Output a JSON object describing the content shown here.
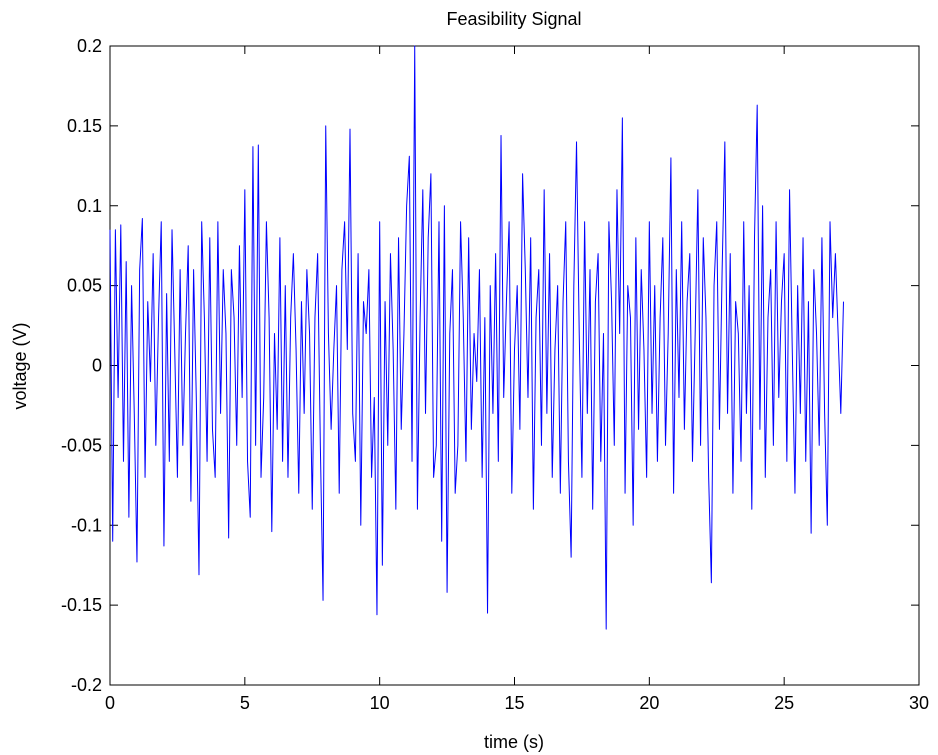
{
  "chart_data": {
    "type": "line",
    "title": "Feasibility Signal",
    "xlabel": "time (s)",
    "ylabel": "voltage (V)",
    "xlim": [
      0,
      30
    ],
    "ylim": [
      -0.2,
      0.2
    ],
    "xticks": [
      0,
      5,
      10,
      15,
      20,
      25,
      30
    ],
    "xtick_labels": [
      "0",
      "5",
      "10",
      "15",
      "20",
      "25",
      "30"
    ],
    "yticks": [
      -0.2,
      -0.15,
      -0.1,
      -0.05,
      0,
      0.05,
      0.1,
      0.15,
      0.2
    ],
    "ytick_labels": [
      "-0.2",
      "-0.15",
      "-0.1",
      "-0.05",
      "0",
      "0.05",
      "0.1",
      "0.15",
      "0.2"
    ],
    "grid": false,
    "series_color": "#0000ff",
    "series": [
      {
        "x_start": 0,
        "x_step": 0.1,
        "values": [
          0.085,
          -0.11,
          0.085,
          -0.02,
          0.088,
          -0.06,
          0.065,
          -0.095,
          0.05,
          -0.03,
          -0.123,
          0.06,
          0.092,
          -0.07,
          0.04,
          -0.01,
          0.07,
          -0.05,
          0.03,
          0.09,
          -0.113,
          0.045,
          -0.06,
          0.085,
          0.01,
          -0.07,
          0.06,
          -0.05,
          0.02,
          0.075,
          -0.085,
          0.06,
          -0.02,
          -0.131,
          0.09,
          0.03,
          -0.06,
          0.08,
          -0.04,
          -0.07,
          0.09,
          -0.03,
          0.06,
          0.02,
          -0.108,
          0.06,
          0.03,
          -0.05,
          0.075,
          -0.02,
          0.11,
          -0.06,
          -0.095,
          0.137,
          -0.05,
          0.138,
          -0.07,
          -0.02,
          0.09,
          0.03,
          -0.104,
          0.02,
          -0.04,
          0.08,
          -0.06,
          0.05,
          -0.07,
          0.03,
          0.07,
          0.01,
          -0.08,
          0.04,
          -0.03,
          0.06,
          0.02,
          -0.09,
          0.03,
          0.07,
          -0.05,
          -0.147,
          0.15,
          0.02,
          -0.04,
          0.01,
          0.05,
          -0.08,
          0.06,
          0.09,
          0.01,
          0.148,
          -0.03,
          -0.06,
          0.07,
          -0.1,
          0.04,
          0.02,
          0.06,
          -0.07,
          -0.02,
          -0.156,
          0.09,
          -0.125,
          0.04,
          -0.05,
          0.07,
          0.01,
          -0.09,
          0.08,
          -0.04,
          0.02,
          0.1,
          0.131,
          -0.06,
          0.2,
          -0.09,
          0.03,
          0.11,
          -0.03,
          0.08,
          0.12,
          -0.07,
          -0.05,
          0.09,
          -0.11,
          0.1,
          -0.142,
          0.02,
          0.06,
          -0.08,
          -0.05,
          0.09,
          0.03,
          -0.06,
          0.08,
          -0.04,
          0.02,
          -0.01,
          0.06,
          -0.07,
          0.03,
          -0.155,
          0.05,
          -0.03,
          0.07,
          -0.06,
          0.144,
          -0.02,
          0.04,
          0.09,
          -0.08,
          0.01,
          0.05,
          -0.04,
          0.12,
          0.06,
          -0.02,
          0.08,
          -0.09,
          0.03,
          0.06,
          -0.05,
          0.11,
          -0.03,
          0.07,
          -0.07,
          0.01,
          0.05,
          -0.08,
          0.04,
          0.09,
          -0.06,
          -0.12,
          0.05,
          0.14,
          0.02,
          -0.07,
          0.09,
          -0.03,
          0.06,
          -0.09,
          0.04,
          0.07,
          -0.06,
          0.02,
          -0.165,
          0.09,
          0.04,
          -0.05,
          0.11,
          0.02,
          0.155,
          -0.08,
          0.05,
          0.03,
          -0.1,
          0.08,
          -0.04,
          0.06,
          0.01,
          -0.07,
          0.09,
          -0.03,
          0.05,
          -0.06,
          0.03,
          0.08,
          -0.05,
          0.02,
          0.13,
          -0.08,
          0.06,
          -0.02,
          0.09,
          -0.04,
          0.04,
          0.07,
          -0.06,
          0.02,
          0.11,
          -0.05,
          0.08,
          0.03,
          -0.07,
          -0.136,
          0.05,
          0.09,
          -0.04,
          0.06,
          0.14,
          -0.03,
          0.07,
          -0.08,
          0.04,
          0.02,
          -0.06,
          0.09,
          -0.03,
          0.05,
          -0.09,
          0.08,
          0.163,
          -0.04,
          0.1,
          -0.07,
          0.03,
          0.06,
          -0.05,
          0.09,
          -0.02,
          0.04,
          0.07,
          -0.06,
          0.11,
          0.01,
          -0.08,
          0.05,
          -0.03,
          0.08,
          -0.06,
          0.04,
          -0.105,
          0.06,
          0.02,
          -0.05,
          0.08,
          -0.03,
          -0.1,
          0.09,
          0.03,
          0.07,
          0.02,
          -0.03,
          0.04
        ]
      }
    ]
  }
}
